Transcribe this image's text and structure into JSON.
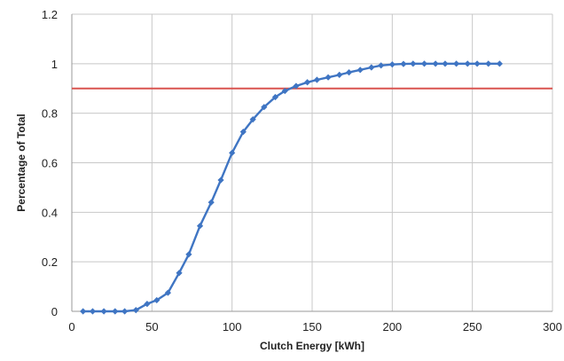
{
  "chart_data": {
    "type": "line",
    "title": "",
    "xlabel": "Clutch Energy [kWh]",
    "ylabel": "Percentage of Total",
    "xlim": [
      0,
      300
    ],
    "ylim": [
      0,
      1.2
    ],
    "x_ticks": [
      "0",
      "50",
      "100",
      "150",
      "200",
      "250",
      "300"
    ],
    "y_ticks": [
      "0",
      "0.2",
      "0.4",
      "0.6",
      "0.8",
      "1",
      "1.2"
    ],
    "grid": true,
    "legend": "none",
    "series": [
      {
        "color": "#3f75c3",
        "marker": "diamond",
        "x": [
          7,
          13,
          20,
          27,
          33,
          40,
          47,
          53,
          60,
          67,
          73,
          80,
          87,
          93,
          100,
          107,
          113,
          120,
          127,
          133,
          140,
          147,
          153,
          160,
          167,
          173,
          180,
          187,
          193,
          200,
          207,
          213,
          220,
          227,
          233,
          240,
          247,
          253,
          260,
          267
        ],
        "y": [
          0,
          0,
          0,
          0,
          0,
          0.005,
          0.03,
          0.045,
          0.075,
          0.155,
          0.23,
          0.345,
          0.44,
          0.53,
          0.64,
          0.725,
          0.775,
          0.825,
          0.865,
          0.89,
          0.91,
          0.925,
          0.935,
          0.945,
          0.955,
          0.965,
          0.975,
          0.985,
          0.993,
          0.997,
          0.999,
          1,
          1,
          1,
          1,
          1,
          1,
          1,
          1,
          1
        ]
      }
    ],
    "reference_lines": [
      {
        "orientation": "horizontal",
        "y": 0.9,
        "color": "#d9534f"
      }
    ]
  }
}
